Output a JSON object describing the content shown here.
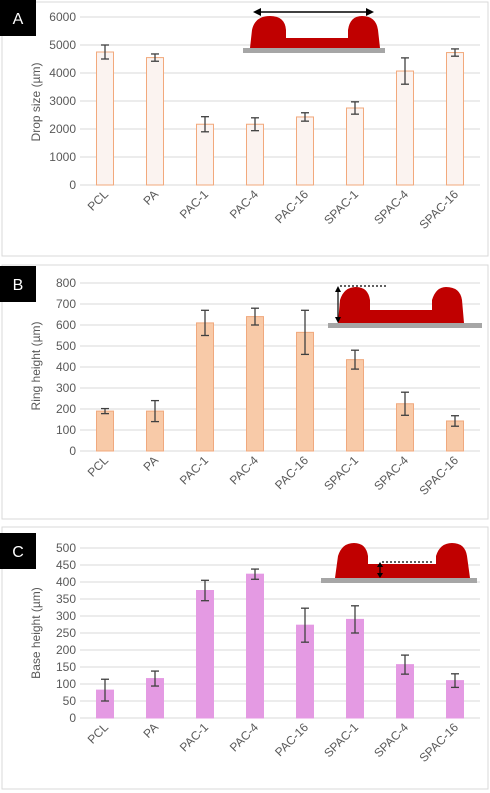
{
  "chart_data": [
    {
      "type": "bar",
      "panel_label": "A",
      "ylabel": "Drop size (µm)",
      "ylim": [
        0,
        6000
      ],
      "yticks": [
        "0",
        "1000",
        "2000",
        "3000",
        "4000",
        "5000",
        "6000"
      ],
      "grid": true,
      "categories": [
        "PCL",
        "PA",
        "PAC-1",
        "PAC-4",
        "PAC-16",
        "SPAC-1",
        "SPAC-4",
        "SPAC-16"
      ],
      "values": [
        4750,
        4550,
        2170,
        2170,
        2430,
        2750,
        4070,
        4730
      ],
      "errors": [
        250,
        130,
        270,
        230,
        150,
        220,
        470,
        130
      ],
      "colors": {
        "fill": "#fbf3f0",
        "stroke": "#f2a97c"
      }
    },
    {
      "type": "bar",
      "panel_label": "B",
      "ylabel": "Ring height (µm)",
      "ylim": [
        0,
        800
      ],
      "yticks": [
        "0",
        "100",
        "200",
        "300",
        "400",
        "500",
        "600",
        "700",
        "800"
      ],
      "grid": true,
      "categories": [
        "PCL",
        "PA",
        "PAC-1",
        "PAC-4",
        "PAC-16",
        "SPAC-1",
        "SPAC-4",
        "SPAC-16"
      ],
      "values": [
        190,
        190,
        610,
        640,
        565,
        435,
        225,
        143
      ],
      "errors": [
        12,
        50,
        60,
        40,
        105,
        45,
        55,
        25
      ],
      "colors": {
        "fill": "#f8caa8",
        "stroke": "#f0a97e"
      }
    },
    {
      "type": "bar",
      "panel_label": "C",
      "ylabel": "Base height (µm)",
      "ylim": [
        0,
        500
      ],
      "yticks": [
        "0",
        "50",
        "100",
        "150",
        "200",
        "250",
        "300",
        "350",
        "400",
        "450",
        "500"
      ],
      "grid": true,
      "categories": [
        "PCL",
        "PA",
        "PAC-1",
        "PAC-4",
        "PAC-16",
        "SPAC-1",
        "SPAC-4",
        "SPAC-16"
      ],
      "values": [
        82,
        116,
        375,
        423,
        273,
        290,
        157,
        110
      ],
      "errors": [
        32,
        22,
        30,
        15,
        50,
        40,
        28,
        20
      ],
      "colors": {
        "fill": "#e49ae3",
        "stroke": "#e49ae3"
      }
    }
  ],
  "colors": {
    "drop_red": "#c00000",
    "substrate_gray": "#a6a6a6",
    "grid": "#d9d9d9",
    "error_bar": "#404040",
    "label_box": "#000000"
  },
  "icons": [
    "drop-size-schematic-icon",
    "ring-height-schematic-icon",
    "base-height-schematic-icon"
  ]
}
